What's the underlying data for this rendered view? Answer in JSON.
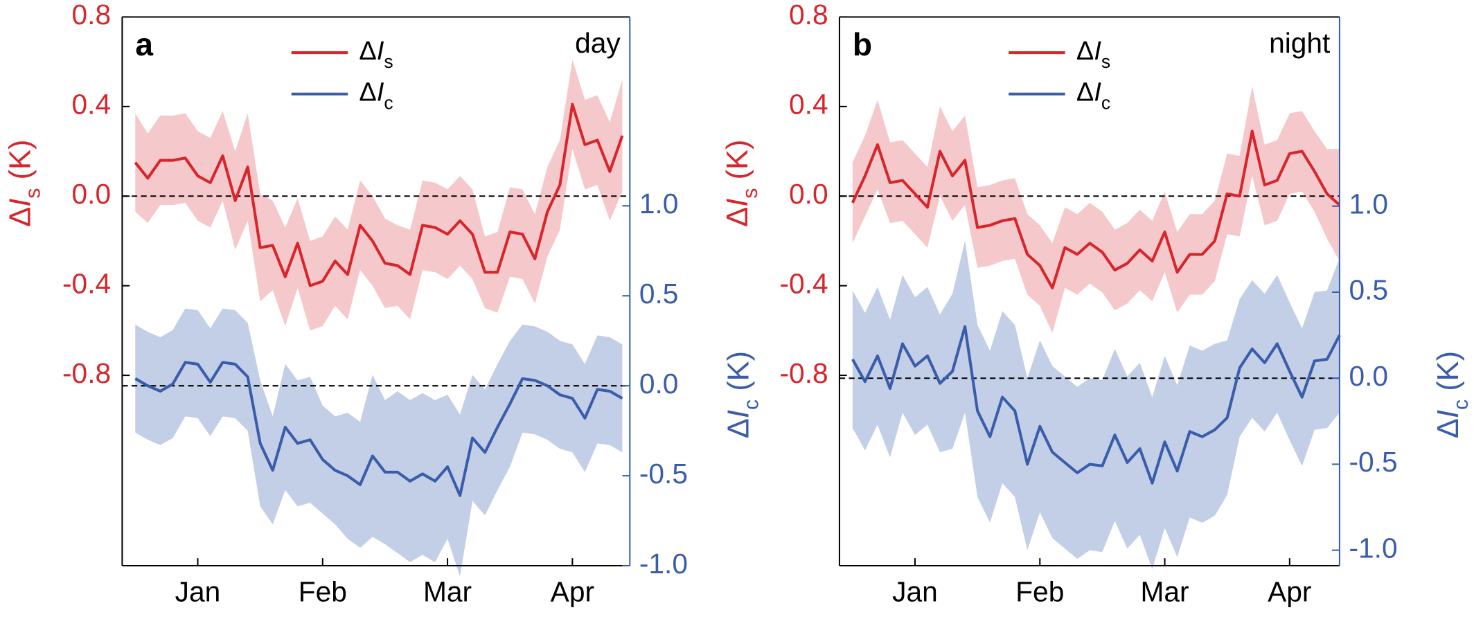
{
  "chart_data": [
    {
      "type": "line",
      "panel_label": "a",
      "annotation": "day",
      "ylabel": "ΔIs (K)",
      "y2label": "ΔIc (K)",
      "x": [
        0,
        1,
        2,
        3,
        4,
        5,
        6,
        7,
        8,
        9,
        10,
        11,
        12,
        13,
        14,
        15,
        16,
        17,
        18,
        19,
        20,
        21,
        22,
        23,
        24,
        25,
        26,
        27,
        28,
        29,
        30,
        31,
        32,
        33,
        34,
        35,
        36,
        37,
        38,
        39
      ],
      "xlim": [
        -1.05,
        39.6
      ],
      "xticks": [
        {
          "value": 5,
          "label": "Jan"
        },
        {
          "value": 15,
          "label": "Feb"
        },
        {
          "value": 25,
          "label": "Mar"
        },
        {
          "value": 35,
          "label": "Apr"
        }
      ],
      "ylim": [
        -1.65,
        0.8
      ],
      "yticks": [
        -0.8,
        -0.4,
        {
          "value": 0,
          "label": "0.0"
        },
        0.4,
        0.8
      ],
      "y2lim": [
        -1.0,
        2.05
      ],
      "y2ticks": [
        {
          "value": -1,
          "label": "-1.0"
        },
        -0.5,
        {
          "value": 0,
          "label": "0.0"
        },
        0.5,
        {
          "value": 1,
          "label": "1.0"
        }
      ],
      "zero_lines": true,
      "legend": "upper center",
      "series": [
        {
          "name": "ΔIs",
          "color": "#d7262b",
          "band_color": "#f5c9cc",
          "values": [
            0.15,
            0.08,
            0.16,
            0.16,
            0.17,
            0.09,
            0.06,
            0.18,
            -0.02,
            0.13,
            -0.23,
            -0.22,
            -0.36,
            -0.21,
            -0.4,
            -0.38,
            -0.29,
            -0.35,
            -0.13,
            -0.2,
            -0.3,
            -0.31,
            -0.35,
            -0.13,
            -0.14,
            -0.17,
            -0.11,
            -0.17,
            -0.34,
            -0.34,
            -0.16,
            -0.17,
            -0.28,
            -0.07,
            0.05,
            0.41,
            0.23,
            0.25,
            0.11,
            0.27
          ],
          "error": [
            0.22,
            0.2,
            0.2,
            0.2,
            0.2,
            0.2,
            0.2,
            0.2,
            0.22,
            0.24,
            0.24,
            0.2,
            0.22,
            0.2,
            0.2,
            0.2,
            0.2,
            0.2,
            0.2,
            0.2,
            0.2,
            0.18,
            0.2,
            0.2,
            0.2,
            0.2,
            0.2,
            0.2,
            0.16,
            0.18,
            0.2,
            0.2,
            0.2,
            0.2,
            0.2,
            0.2,
            0.2,
            0.2,
            0.22,
            0.25
          ]
        },
        {
          "name": "ΔIc",
          "color": "#3a5dab",
          "band_color": "#c3cfe6",
          "axis": "y2",
          "values": [
            0.04,
            0,
            -0.03,
            0.01,
            0.13,
            0.12,
            0.02,
            0.13,
            0.12,
            0.05,
            -0.32,
            -0.47,
            -0.23,
            -0.32,
            -0.3,
            -0.41,
            -0.47,
            -0.5,
            -0.55,
            -0.39,
            -0.48,
            -0.48,
            -0.53,
            -0.49,
            -0.53,
            -0.45,
            -0.61,
            -0.29,
            -0.37,
            -0.23,
            -0.1,
            0.04,
            0.03,
            0,
            -0.05,
            -0.07,
            -0.18,
            -0.02,
            -0.03,
            -0.07
          ],
          "error": [
            0.3,
            0.3,
            0.3,
            0.3,
            0.3,
            0.3,
            0.3,
            0.3,
            0.3,
            0.3,
            0.35,
            0.3,
            0.35,
            0.35,
            0.35,
            0.3,
            0.3,
            0.35,
            0.35,
            0.45,
            0.4,
            0.45,
            0.45,
            0.45,
            0.45,
            0.4,
            0.45,
            0.35,
            0.35,
            0.35,
            0.35,
            0.3,
            0.3,
            0.3,
            0.3,
            0.3,
            0.3,
            0.3,
            0.3,
            0.3
          ]
        }
      ]
    },
    {
      "type": "line",
      "panel_label": "b",
      "annotation": "night",
      "ylabel": "ΔIs (K)",
      "y2label": "ΔIc (K)",
      "x": [
        0,
        1,
        2,
        3,
        4,
        5,
        6,
        7,
        8,
        9,
        10,
        11,
        12,
        13,
        14,
        15,
        16,
        17,
        18,
        19,
        20,
        21,
        22,
        23,
        24,
        25,
        26,
        27,
        28,
        29,
        30,
        31,
        32,
        33,
        34,
        35,
        36,
        37,
        38,
        39
      ],
      "xlim": [
        -1.05,
        39.0
      ],
      "xticks": [
        {
          "value": 5,
          "label": "Jan"
        },
        {
          "value": 15,
          "label": "Feb"
        },
        {
          "value": 25,
          "label": "Mar"
        },
        {
          "value": 35,
          "label": "Apr"
        }
      ],
      "ylim": [
        -1.65,
        0.8
      ],
      "yticks": [
        -0.8,
        -0.4,
        {
          "value": 0,
          "label": "0.0"
        },
        0.4,
        0.8
      ],
      "y2lim": [
        -1.09,
        2.1
      ],
      "y2ticks": [
        {
          "value": -1,
          "label": "-1.0"
        },
        -0.5,
        {
          "value": 0,
          "label": "0.0"
        },
        0.5,
        {
          "value": 1,
          "label": "1.0"
        }
      ],
      "zero_lines": true,
      "legend": "upper center",
      "series": [
        {
          "name": "ΔIs",
          "color": "#d7262b",
          "band_color": "#f5c9cc",
          "values": [
            -0.03,
            0.09,
            0.23,
            0.06,
            0.07,
            0.01,
            -0.05,
            0.2,
            0.09,
            0.16,
            -0.14,
            -0.13,
            -0.11,
            -0.1,
            -0.26,
            -0.31,
            -0.41,
            -0.23,
            -0.26,
            -0.21,
            -0.25,
            -0.33,
            -0.3,
            -0.24,
            -0.29,
            -0.16,
            -0.34,
            -0.26,
            -0.26,
            -0.2,
            0.01,
            0.0,
            0.29,
            0.05,
            0.07,
            0.19,
            0.2,
            0.11,
            0.01,
            -0.04
          ],
          "error": [
            0.18,
            0.18,
            0.2,
            0.18,
            0.18,
            0.18,
            0.18,
            0.2,
            0.2,
            0.2,
            0.18,
            0.18,
            0.18,
            0.18,
            0.18,
            0.18,
            0.2,
            0.18,
            0.18,
            0.18,
            0.18,
            0.18,
            0.18,
            0.18,
            0.18,
            0.18,
            0.18,
            0.18,
            0.18,
            0.18,
            0.18,
            0.18,
            0.2,
            0.18,
            0.18,
            0.18,
            0.18,
            0.18,
            0.2,
            0.25
          ]
        },
        {
          "name": "ΔIc",
          "color": "#3a5dab",
          "band_color": "#c3cfe6",
          "axis": "y2",
          "values": [
            0.11,
            -0.02,
            0.13,
            -0.06,
            0.2,
            0.07,
            0.13,
            -0.03,
            0.04,
            0.3,
            -0.19,
            -0.34,
            -0.11,
            -0.19,
            -0.5,
            -0.28,
            -0.43,
            -0.49,
            -0.55,
            -0.5,
            -0.51,
            -0.33,
            -0.49,
            -0.41,
            -0.61,
            -0.37,
            -0.54,
            -0.31,
            -0.34,
            -0.3,
            -0.23,
            0.06,
            0.17,
            0.09,
            0.2,
            0.04,
            -0.11,
            0.1,
            0.11,
            0.25
          ],
          "error": [
            0.4,
            0.4,
            0.4,
            0.4,
            0.4,
            0.4,
            0.4,
            0.4,
            0.45,
            0.5,
            0.5,
            0.5,
            0.5,
            0.5,
            0.5,
            0.5,
            0.5,
            0.5,
            0.5,
            0.5,
            0.5,
            0.5,
            0.5,
            0.5,
            0.5,
            0.5,
            0.5,
            0.5,
            0.5,
            0.5,
            0.45,
            0.4,
            0.4,
            0.4,
            0.4,
            0.4,
            0.4,
            0.4,
            0.4,
            0.45
          ]
        }
      ]
    }
  ]
}
